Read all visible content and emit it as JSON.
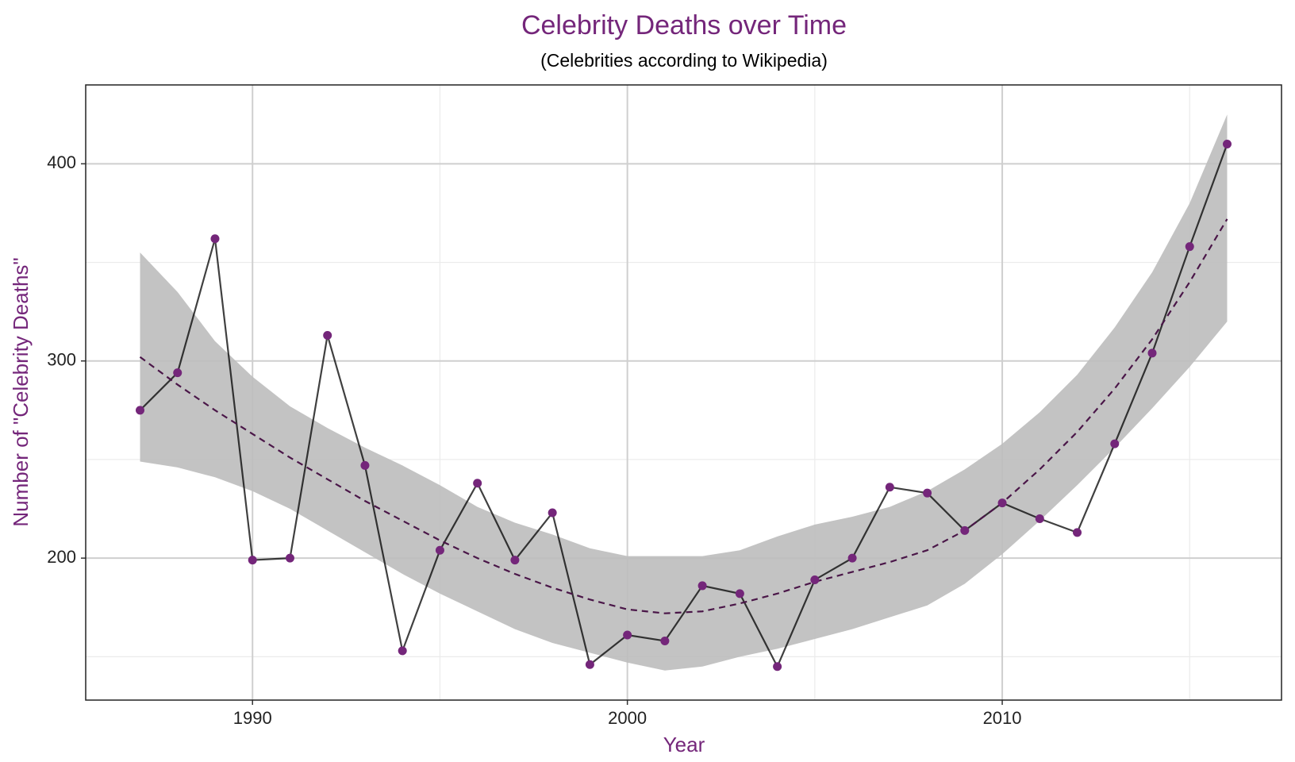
{
  "chart_data": {
    "type": "line",
    "title": "Celebrity Deaths over Time",
    "subtitle": "(Celebrities according to Wikipedia)",
    "x_label": "Year",
    "y_label": "Number of \"Celebrity Deaths\"",
    "x": [
      1987,
      1988,
      1989,
      1990,
      1991,
      1992,
      1993,
      1994,
      1995,
      1996,
      1997,
      1998,
      1999,
      2000,
      2001,
      2002,
      2003,
      2004,
      2005,
      2006,
      2007,
      2008,
      2009,
      2010,
      2011,
      2012,
      2013,
      2014,
      2015,
      2016
    ],
    "values": [
      275,
      294,
      362,
      199,
      200,
      313,
      247,
      153,
      204,
      238,
      199,
      223,
      146,
      161,
      158,
      186,
      182,
      145,
      189,
      200,
      236,
      233,
      214,
      228,
      220,
      213,
      258,
      304,
      358,
      410
    ],
    "color": "#74267a",
    "line_color": "#000000",
    "trend": {
      "values": [
        302,
        288,
        275,
        263,
        251,
        240,
        229,
        219,
        209,
        200,
        192,
        185,
        179,
        174,
        172,
        173,
        177,
        182,
        188,
        193,
        198,
        204,
        214,
        228,
        245,
        264,
        286,
        311,
        340,
        372
      ],
      "lower": [
        249,
        246,
        241,
        234,
        225,
        214,
        203,
        192,
        182,
        173,
        164,
        157,
        152,
        147,
        143,
        145,
        150,
        154,
        159,
        164,
        170,
        176,
        187,
        202,
        219,
        237,
        256,
        276,
        297,
        320
      ],
      "upper": [
        355,
        335,
        310,
        292,
        277,
        266,
        256,
        247,
        237,
        226,
        218,
        212,
        205,
        201,
        201,
        201,
        204,
        211,
        217,
        221,
        226,
        234,
        245,
        258,
        274,
        293,
        317,
        345,
        380,
        425
      ],
      "color": "#4a1648",
      "band_color": "#bdbdbd"
    },
    "xlim": [
      1985.55,
      2017.45
    ],
    "ylim": [
      128,
      440
    ],
    "xticks": [
      1990,
      2000,
      2010
    ],
    "yticks": [
      200,
      300,
      400
    ],
    "xminor": [
      1995,
      2005,
      2015
    ],
    "yminor": [
      150,
      250,
      350
    ],
    "grid": true
  }
}
